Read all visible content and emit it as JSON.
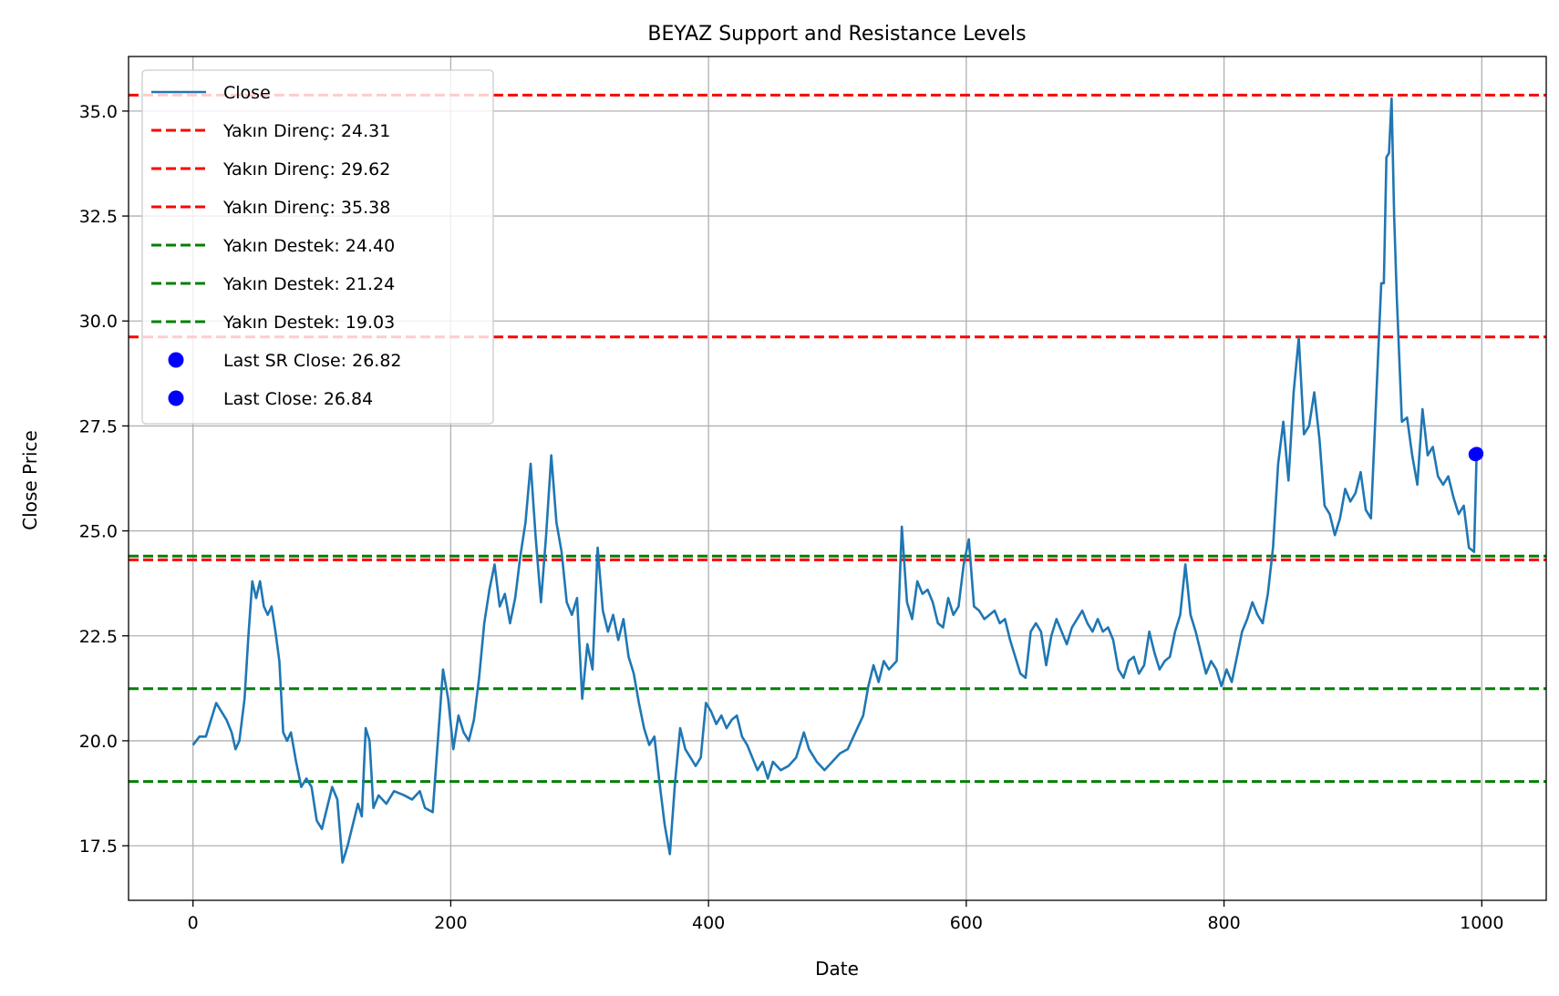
{
  "chart_data": {
    "type": "line",
    "title": "BEYAZ Support and Resistance Levels",
    "xlabel": "Date",
    "ylabel": "Close Price",
    "xlim": [
      -50,
      1050
    ],
    "ylim": [
      16.2,
      36.3
    ],
    "xticks": [
      0,
      200,
      400,
      600,
      800,
      1000
    ],
    "yticks": [
      17.5,
      20.0,
      22.5,
      25.0,
      27.5,
      30.0,
      32.5,
      35.0
    ],
    "grid": true,
    "legend_position": "top-left",
    "series": [
      {
        "name": "Close",
        "color": "#1f77b4",
        "points": [
          [
            0,
            19.9
          ],
          [
            5,
            20.1
          ],
          [
            10,
            20.1
          ],
          [
            14,
            20.5
          ],
          [
            18,
            20.9
          ],
          [
            22,
            20.7
          ],
          [
            26,
            20.5
          ],
          [
            30,
            20.2
          ],
          [
            33,
            19.8
          ],
          [
            36,
            20.0
          ],
          [
            40,
            21.0
          ],
          [
            43,
            22.5
          ],
          [
            46,
            23.8
          ],
          [
            49,
            23.4
          ],
          [
            52,
            23.8
          ],
          [
            55,
            23.2
          ],
          [
            58,
            23.0
          ],
          [
            61,
            23.2
          ],
          [
            64,
            22.6
          ],
          [
            67,
            21.9
          ],
          [
            70,
            20.2
          ],
          [
            73,
            20.0
          ],
          [
            76,
            20.2
          ],
          [
            80,
            19.5
          ],
          [
            84,
            18.9
          ],
          [
            88,
            19.1
          ],
          [
            92,
            18.9
          ],
          [
            96,
            18.1
          ],
          [
            100,
            17.9
          ],
          [
            104,
            18.4
          ],
          [
            108,
            18.9
          ],
          [
            112,
            18.6
          ],
          [
            116,
            17.1
          ],
          [
            120,
            17.5
          ],
          [
            124,
            18.0
          ],
          [
            128,
            18.5
          ],
          [
            131,
            18.2
          ],
          [
            134,
            20.3
          ],
          [
            137,
            20.0
          ],
          [
            140,
            18.4
          ],
          [
            144,
            18.7
          ],
          [
            150,
            18.5
          ],
          [
            156,
            18.8
          ],
          [
            164,
            18.7
          ],
          [
            170,
            18.6
          ],
          [
            176,
            18.8
          ],
          [
            180,
            18.4
          ],
          [
            186,
            18.3
          ],
          [
            190,
            20.0
          ],
          [
            194,
            21.7
          ],
          [
            198,
            21.0
          ],
          [
            202,
            19.8
          ],
          [
            206,
            20.6
          ],
          [
            210,
            20.2
          ],
          [
            214,
            20.0
          ],
          [
            218,
            20.5
          ],
          [
            222,
            21.5
          ],
          [
            226,
            22.8
          ],
          [
            230,
            23.6
          ],
          [
            234,
            24.2
          ],
          [
            238,
            23.2
          ],
          [
            242,
            23.5
          ],
          [
            246,
            22.8
          ],
          [
            250,
            23.4
          ],
          [
            254,
            24.4
          ],
          [
            258,
            25.2
          ],
          [
            262,
            26.6
          ],
          [
            266,
            24.8
          ],
          [
            270,
            23.3
          ],
          [
            274,
            24.9
          ],
          [
            278,
            26.8
          ],
          [
            282,
            25.2
          ],
          [
            286,
            24.5
          ],
          [
            290,
            23.3
          ],
          [
            294,
            23.0
          ],
          [
            298,
            23.4
          ],
          [
            302,
            21.0
          ],
          [
            306,
            22.3
          ],
          [
            310,
            21.7
          ],
          [
            314,
            24.6
          ],
          [
            318,
            23.1
          ],
          [
            322,
            22.6
          ],
          [
            326,
            23.0
          ],
          [
            330,
            22.4
          ],
          [
            334,
            22.9
          ],
          [
            338,
            22.0
          ],
          [
            342,
            21.6
          ],
          [
            346,
            20.9
          ],
          [
            350,
            20.3
          ],
          [
            354,
            19.9
          ],
          [
            358,
            20.1
          ],
          [
            362,
            19.0
          ],
          [
            366,
            18.0
          ],
          [
            370,
            17.3
          ],
          [
            374,
            19.0
          ],
          [
            378,
            20.3
          ],
          [
            382,
            19.8
          ],
          [
            386,
            19.6
          ],
          [
            390,
            19.4
          ],
          [
            394,
            19.6
          ],
          [
            398,
            20.9
          ],
          [
            402,
            20.7
          ],
          [
            406,
            20.4
          ],
          [
            410,
            20.6
          ],
          [
            414,
            20.3
          ],
          [
            418,
            20.5
          ],
          [
            422,
            20.6
          ],
          [
            426,
            20.1
          ],
          [
            430,
            19.9
          ],
          [
            434,
            19.6
          ],
          [
            438,
            19.3
          ],
          [
            442,
            19.5
          ],
          [
            446,
            19.1
          ],
          [
            450,
            19.5
          ],
          [
            456,
            19.3
          ],
          [
            462,
            19.4
          ],
          [
            468,
            19.6
          ],
          [
            474,
            20.2
          ],
          [
            478,
            19.8
          ],
          [
            484,
            19.5
          ],
          [
            490,
            19.3
          ],
          [
            496,
            19.5
          ],
          [
            502,
            19.7
          ],
          [
            508,
            19.8
          ],
          [
            514,
            20.2
          ],
          [
            520,
            20.6
          ],
          [
            524,
            21.3
          ],
          [
            528,
            21.8
          ],
          [
            532,
            21.4
          ],
          [
            536,
            21.9
          ],
          [
            540,
            21.7
          ],
          [
            546,
            21.9
          ],
          [
            550,
            25.1
          ],
          [
            554,
            23.3
          ],
          [
            558,
            22.9
          ],
          [
            562,
            23.8
          ],
          [
            566,
            23.5
          ],
          [
            570,
            23.6
          ],
          [
            574,
            23.3
          ],
          [
            578,
            22.8
          ],
          [
            582,
            22.7
          ],
          [
            586,
            23.4
          ],
          [
            590,
            23.0
          ],
          [
            594,
            23.2
          ],
          [
            598,
            24.2
          ],
          [
            602,
            24.8
          ],
          [
            606,
            23.2
          ],
          [
            610,
            23.1
          ],
          [
            614,
            22.9
          ],
          [
            618,
            23.0
          ],
          [
            622,
            23.1
          ],
          [
            626,
            22.8
          ],
          [
            630,
            22.9
          ],
          [
            634,
            22.4
          ],
          [
            638,
            22.0
          ],
          [
            642,
            21.6
          ],
          [
            646,
            21.5
          ],
          [
            650,
            22.6
          ],
          [
            654,
            22.8
          ],
          [
            658,
            22.6
          ],
          [
            662,
            21.8
          ],
          [
            666,
            22.5
          ],
          [
            670,
            22.9
          ],
          [
            674,
            22.6
          ],
          [
            678,
            22.3
          ],
          [
            682,
            22.7
          ],
          [
            686,
            22.9
          ],
          [
            690,
            23.1
          ],
          [
            694,
            22.8
          ],
          [
            698,
            22.6
          ],
          [
            702,
            22.9
          ],
          [
            706,
            22.6
          ],
          [
            710,
            22.7
          ],
          [
            714,
            22.4
          ],
          [
            718,
            21.7
          ],
          [
            722,
            21.5
          ],
          [
            726,
            21.9
          ],
          [
            730,
            22.0
          ],
          [
            734,
            21.6
          ],
          [
            738,
            21.8
          ],
          [
            742,
            22.6
          ],
          [
            746,
            22.1
          ],
          [
            750,
            21.7
          ],
          [
            754,
            21.9
          ],
          [
            758,
            22.0
          ],
          [
            762,
            22.6
          ],
          [
            766,
            23.0
          ],
          [
            770,
            24.2
          ],
          [
            774,
            23.0
          ],
          [
            778,
            22.6
          ],
          [
            782,
            22.1
          ],
          [
            786,
            21.6
          ],
          [
            790,
            21.9
          ],
          [
            794,
            21.7
          ],
          [
            798,
            21.3
          ],
          [
            802,
            21.7
          ],
          [
            806,
            21.4
          ],
          [
            810,
            22.0
          ],
          [
            814,
            22.6
          ],
          [
            818,
            22.9
          ],
          [
            822,
            23.3
          ],
          [
            826,
            23.0
          ],
          [
            830,
            22.8
          ],
          [
            834,
            23.5
          ],
          [
            838,
            24.6
          ],
          [
            842,
            26.6
          ],
          [
            846,
            27.6
          ],
          [
            850,
            26.2
          ],
          [
            854,
            28.3
          ],
          [
            858,
            29.6
          ],
          [
            862,
            27.3
          ],
          [
            866,
            27.5
          ],
          [
            870,
            28.3
          ],
          [
            874,
            27.2
          ],
          [
            878,
            25.6
          ],
          [
            882,
            25.4
          ],
          [
            886,
            24.9
          ],
          [
            890,
            25.3
          ],
          [
            894,
            26.0
          ],
          [
            898,
            25.7
          ],
          [
            902,
            25.9
          ],
          [
            906,
            26.4
          ],
          [
            910,
            25.5
          ],
          [
            914,
            25.3
          ],
          [
            918,
            28.1
          ],
          [
            922,
            30.9
          ],
          [
            924,
            30.9
          ],
          [
            926,
            33.9
          ],
          [
            928,
            34.0
          ],
          [
            930,
            35.3
          ],
          [
            932,
            32.5
          ],
          [
            934,
            30.6
          ],
          [
            938,
            27.6
          ],
          [
            942,
            27.7
          ],
          [
            946,
            26.8
          ],
          [
            950,
            26.1
          ],
          [
            954,
            27.9
          ],
          [
            958,
            26.8
          ],
          [
            962,
            27.0
          ],
          [
            966,
            26.3
          ],
          [
            970,
            26.1
          ],
          [
            974,
            26.3
          ],
          [
            978,
            25.8
          ],
          [
            982,
            25.4
          ],
          [
            986,
            25.6
          ],
          [
            990,
            24.6
          ],
          [
            994,
            24.5
          ],
          [
            996,
            26.84
          ]
        ]
      }
    ],
    "levels": [
      {
        "name": "Yakın Direnç: 24.31",
        "value": 24.31,
        "color": "#ff0000"
      },
      {
        "name": "Yakın Direnç: 29.62",
        "value": 29.62,
        "color": "#ff0000"
      },
      {
        "name": "Yakın Direnç: 35.38",
        "value": 35.38,
        "color": "#ff0000"
      },
      {
        "name": "Yakın Destek: 24.40",
        "value": 24.4,
        "color": "#008000"
      },
      {
        "name": "Yakın Destek: 21.24",
        "value": 21.24,
        "color": "#008000"
      },
      {
        "name": "Yakın Destek: 19.03",
        "value": 19.03,
        "color": "#008000"
      }
    ],
    "markers": [
      {
        "name": "Last SR Close: 26.82",
        "x": 995,
        "y": 26.82,
        "color": "#0000ff"
      },
      {
        "name": "Last Close: 26.84",
        "x": 996,
        "y": 26.84,
        "color": "#0000ff"
      }
    ]
  }
}
